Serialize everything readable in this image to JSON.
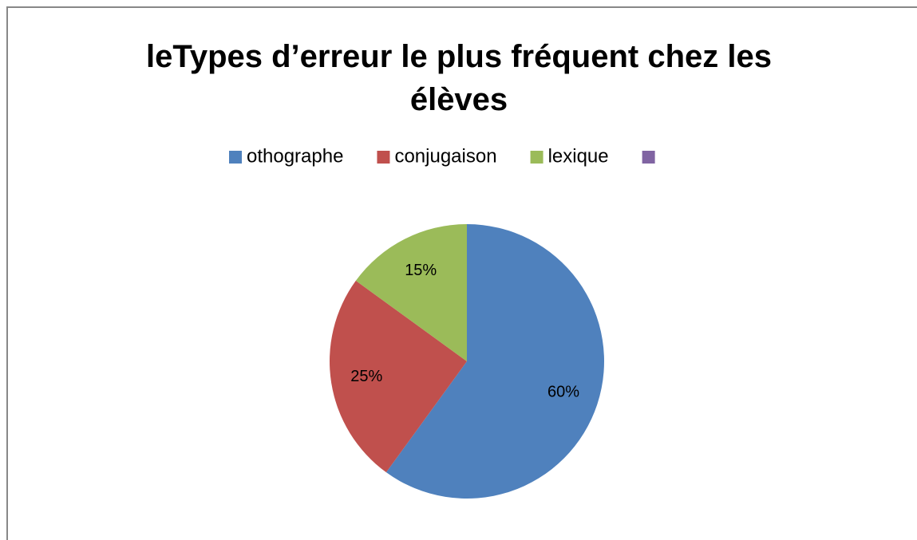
{
  "chart_data": {
    "type": "pie",
    "title": "leTypes d’erreur le plus fréquent chez les élèves",
    "categories": [
      "othographe",
      "conjugaison",
      "lexique",
      null
    ],
    "values": [
      60,
      25,
      15,
      null
    ],
    "value_labels": [
      "60%",
      "25%",
      "15%",
      null
    ],
    "colors": [
      "#4f81bd",
      "#c0504d",
      "#9bbb59",
      "#8064a2"
    ],
    "legend": "top"
  }
}
